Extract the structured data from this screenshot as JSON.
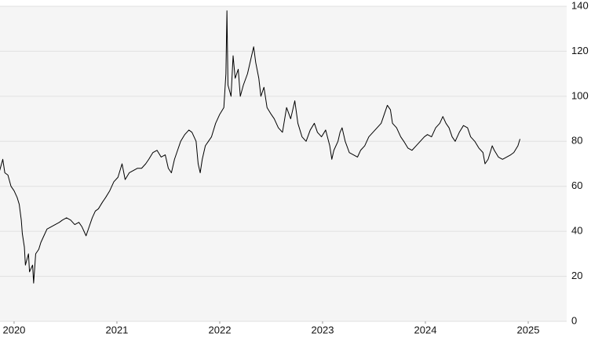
{
  "chart_data": {
    "type": "line",
    "x": [
      2019.86,
      2019.89,
      2019.91,
      2019.94,
      2019.97,
      2020.0,
      2020.03,
      2020.05,
      2020.07,
      2020.08,
      2020.1,
      2020.11,
      2020.14,
      2020.15,
      2020.18,
      2020.19,
      2020.21,
      2020.24,
      2020.26,
      2020.29,
      2020.32,
      2020.36,
      2020.4,
      2020.44,
      2020.47,
      2020.51,
      2020.55,
      2020.59,
      2020.63,
      2020.66,
      2020.7,
      2020.73,
      2020.76,
      2020.79,
      2020.82,
      2020.86,
      2020.89,
      2020.93,
      2020.97,
      2021.01,
      2021.05,
      2021.08,
      2021.12,
      2021.16,
      2021.2,
      2021.24,
      2021.28,
      2021.31,
      2021.35,
      2021.39,
      2021.43,
      2021.47,
      2021.5,
      2021.53,
      2021.56,
      2021.59,
      2021.62,
      2021.66,
      2021.7,
      2021.73,
      2021.77,
      2021.79,
      2021.81,
      2021.83,
      2021.86,
      2021.89,
      2021.92,
      2021.96,
      2022.0,
      2022.04,
      2022.06,
      2022.07,
      2022.08,
      2022.11,
      2022.13,
      2022.15,
      2022.18,
      2022.2,
      2022.23,
      2022.27,
      2022.31,
      2022.33,
      2022.35,
      2022.38,
      2022.4,
      2022.43,
      2022.46,
      2022.5,
      2022.53,
      2022.57,
      2022.61,
      2022.65,
      2022.69,
      2022.73,
      2022.76,
      2022.8,
      2022.84,
      2022.88,
      2022.92,
      2022.95,
      2022.99,
      2023.03,
      2023.07,
      2023.09,
      2023.11,
      2023.15,
      2023.17,
      2023.19,
      2023.22,
      2023.26,
      2023.3,
      2023.34,
      2023.37,
      2023.41,
      2023.45,
      2023.49,
      2023.53,
      2023.57,
      2023.6,
      2023.63,
      2023.66,
      2023.68,
      2023.72,
      2023.76,
      2023.79,
      2023.83,
      2023.87,
      2023.91,
      2023.95,
      2023.99,
      2024.02,
      2024.06,
      2024.1,
      2024.14,
      2024.17,
      2024.2,
      2024.23,
      2024.26,
      2024.29,
      2024.33,
      2024.37,
      2024.41,
      2024.44,
      2024.48,
      2024.52,
      2024.56,
      2024.58,
      2024.61,
      2024.65,
      2024.67,
      2024.71,
      2024.75,
      2024.79,
      2024.83,
      2024.86,
      2024.9,
      2024.92
    ],
    "series": [
      {
        "color": "#000000",
        "values": [
          67,
          72,
          66,
          65,
          60,
          58,
          55,
          52,
          45,
          39,
          33,
          25,
          30,
          22,
          25,
          17,
          30,
          32,
          35,
          38,
          41,
          42,
          43,
          44,
          45,
          46,
          45,
          43,
          44,
          42,
          38,
          42,
          46,
          49,
          50,
          53,
          55,
          58,
          62,
          64,
          70,
          63,
          66,
          67,
          68,
          68,
          70,
          72,
          75,
          76,
          73,
          74,
          68,
          66,
          72,
          76,
          80,
          83,
          85,
          84,
          80,
          70,
          66,
          72,
          78,
          80,
          82,
          88,
          92,
          95,
          110,
          138,
          105,
          100,
          118,
          108,
          112,
          100,
          105,
          110,
          118,
          122,
          115,
          108,
          100,
          104,
          95,
          92,
          90,
          86,
          84,
          95,
          90,
          98,
          88,
          82,
          80,
          85,
          88,
          84,
          82,
          85,
          78,
          72,
          76,
          80,
          84,
          86,
          80,
          75,
          74,
          73,
          76,
          78,
          82,
          84,
          86,
          88,
          92,
          96,
          94,
          88,
          86,
          82,
          80,
          77,
          76,
          78,
          80,
          82,
          83,
          82,
          86,
          88,
          91,
          88,
          86,
          82,
          80,
          84,
          87,
          86,
          82,
          80,
          77,
          75,
          70,
          72,
          78,
          76,
          73,
          72,
          73,
          74,
          75,
          78,
          81
        ]
      }
    ],
    "xlim": [
      2019.863,
      2025.374
    ],
    "xticks": [
      2020,
      2021,
      2022,
      2023,
      2024,
      2025
    ],
    "ylim": [
      0,
      140
    ],
    "yticks": [
      0,
      20,
      40,
      60,
      80,
      100,
      120,
      140
    ],
    "grid": true
  }
}
